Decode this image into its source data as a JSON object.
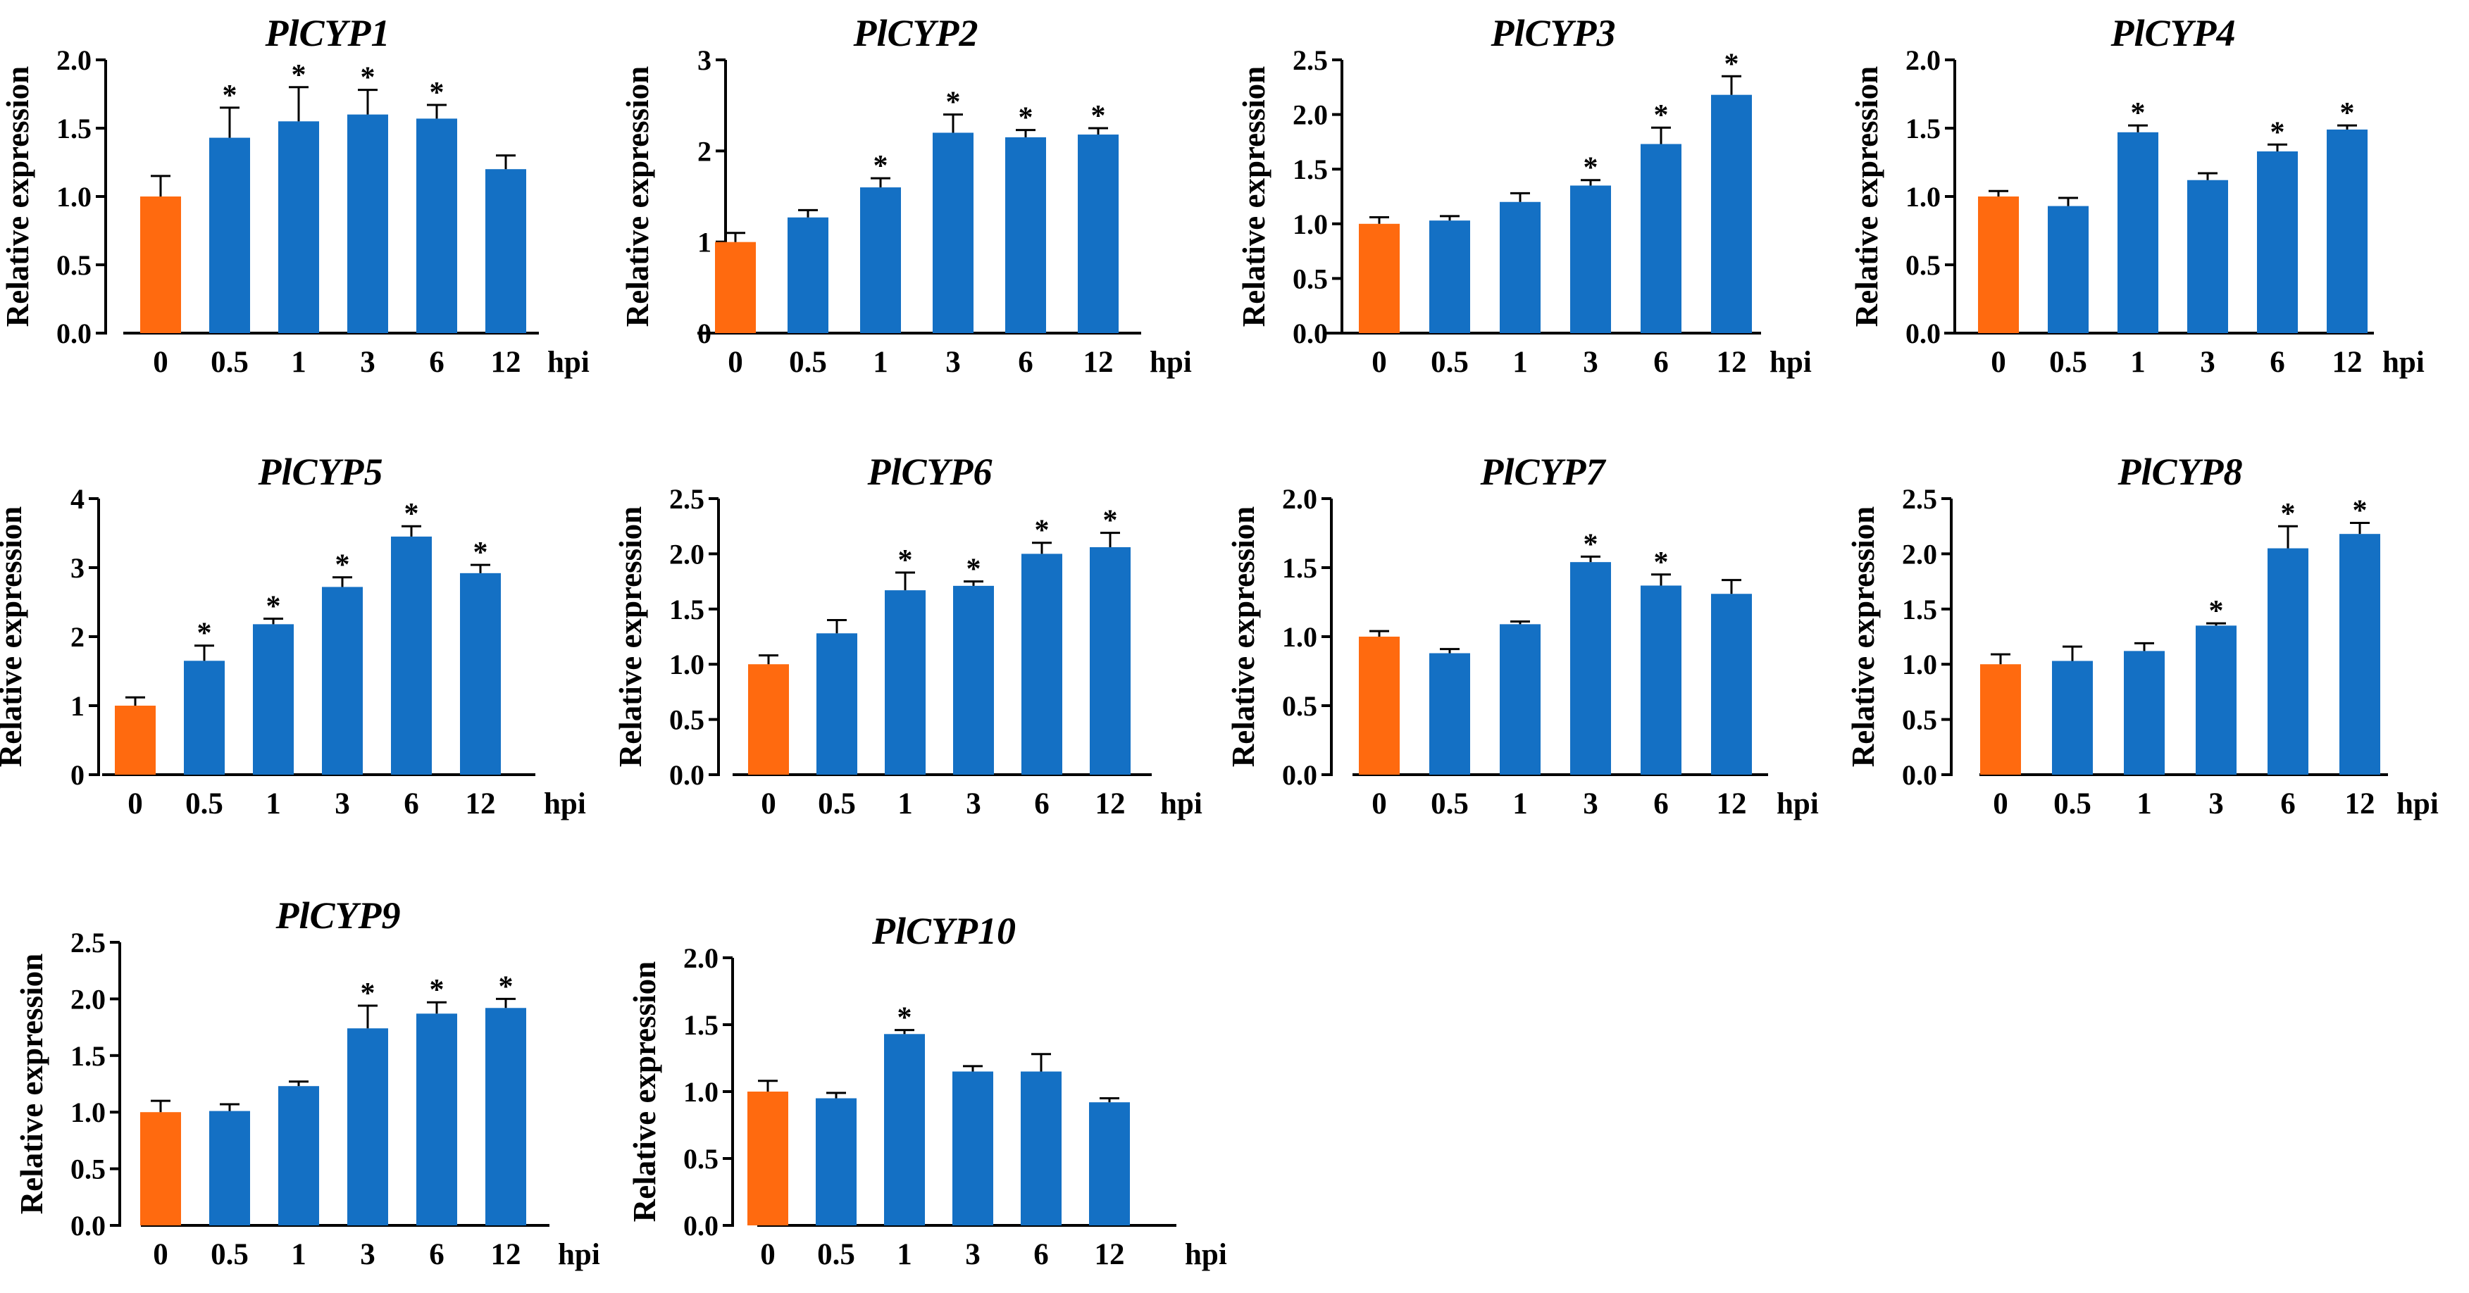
{
  "chart_data": [
    {
      "type": "bar",
      "title": "PlCYP1",
      "ylabel": "Relative expression",
      "xunit": "hpi",
      "categories": [
        "0",
        "0.5",
        "1",
        "3",
        "6",
        "12"
      ],
      "values": [
        1.0,
        1.43,
        1.55,
        1.6,
        1.57,
        1.2
      ],
      "errors": [
        0.15,
        0.22,
        0.25,
        0.18,
        0.1,
        0.1
      ],
      "significant": [
        false,
        true,
        true,
        true,
        true,
        false
      ],
      "ylim": [
        0,
        2.0
      ],
      "yticks": [
        "0.0",
        "0.5",
        "1.0",
        "1.5",
        "2.0"
      ]
    },
    {
      "type": "bar",
      "title": "PlCYP2",
      "ylabel": "Relative expression",
      "xunit": "hpi",
      "categories": [
        "0",
        "0.5",
        "1",
        "3",
        "6",
        "12"
      ],
      "values": [
        1.0,
        1.27,
        1.6,
        2.2,
        2.15,
        2.18
      ],
      "errors": [
        0.1,
        0.08,
        0.1,
        0.2,
        0.08,
        0.07
      ],
      "significant": [
        false,
        false,
        true,
        true,
        true,
        true
      ],
      "ylim": [
        0,
        3
      ],
      "yticks": [
        "0",
        "1",
        "2",
        "3"
      ]
    },
    {
      "type": "bar",
      "title": "PlCYP3",
      "ylabel": "Relative expression",
      "xunit": "hpi",
      "categories": [
        "0",
        "0.5",
        "1",
        "3",
        "6",
        "12"
      ],
      "values": [
        1.0,
        1.03,
        1.2,
        1.35,
        1.73,
        2.18
      ],
      "errors": [
        0.06,
        0.04,
        0.08,
        0.05,
        0.15,
        0.17
      ],
      "significant": [
        false,
        false,
        false,
        true,
        true,
        true
      ],
      "ylim": [
        0,
        2.5
      ],
      "yticks": [
        "0.0",
        "0.5",
        "1.0",
        "1.5",
        "2.0",
        "2.5"
      ]
    },
    {
      "type": "bar",
      "title": "PlCYP4",
      "ylabel": "Relative expression",
      "xunit": "hpi",
      "categories": [
        "0",
        "0.5",
        "1",
        "3",
        "6",
        "12"
      ],
      "values": [
        1.0,
        0.93,
        1.47,
        1.12,
        1.33,
        1.49
      ],
      "errors": [
        0.04,
        0.06,
        0.05,
        0.05,
        0.05,
        0.03
      ],
      "significant": [
        false,
        false,
        true,
        false,
        true,
        true
      ],
      "ylim": [
        0,
        2.0
      ],
      "yticks": [
        "0.0",
        "0.5",
        "1.0",
        "1.5",
        "2.0"
      ]
    },
    {
      "type": "bar",
      "title": "PlCYP5",
      "ylabel": "Relative expression",
      "xunit": "hpi",
      "categories": [
        "0",
        "0.5",
        "1",
        "3",
        "6",
        "12"
      ],
      "values": [
        1.0,
        1.65,
        2.18,
        2.72,
        3.45,
        2.92
      ],
      "errors": [
        0.12,
        0.22,
        0.08,
        0.14,
        0.15,
        0.12
      ],
      "significant": [
        false,
        true,
        true,
        true,
        true,
        true
      ],
      "ylim": [
        0,
        4
      ],
      "yticks": [
        "0",
        "1",
        "2",
        "3",
        "4"
      ]
    },
    {
      "type": "bar",
      "title": "PlCYP6",
      "ylabel": "Relative expression",
      "xunit": "hpi",
      "categories": [
        "0",
        "0.5",
        "1",
        "3",
        "6",
        "12"
      ],
      "values": [
        1.0,
        1.28,
        1.67,
        1.71,
        2.0,
        2.06
      ],
      "errors": [
        0.08,
        0.12,
        0.16,
        0.04,
        0.1,
        0.13
      ],
      "significant": [
        false,
        false,
        true,
        true,
        true,
        true
      ],
      "ylim": [
        0,
        2.5
      ],
      "yticks": [
        "0.0",
        "0.5",
        "1.0",
        "1.5",
        "2.0",
        "2.5"
      ]
    },
    {
      "type": "bar",
      "title": "PlCYP7",
      "ylabel": "Relative expression",
      "xunit": "hpi",
      "categories": [
        "0",
        "0.5",
        "1",
        "3",
        "6",
        "12"
      ],
      "values": [
        1.0,
        0.88,
        1.09,
        1.54,
        1.37,
        1.31
      ],
      "errors": [
        0.04,
        0.03,
        0.02,
        0.04,
        0.08,
        0.1
      ],
      "significant": [
        false,
        false,
        false,
        true,
        true,
        false
      ],
      "ylim": [
        0,
        2.0
      ],
      "yticks": [
        "0.0",
        "0.5",
        "1.0",
        "1.5",
        "2.0"
      ]
    },
    {
      "type": "bar",
      "title": "PlCYP8",
      "ylabel": "Relative expression",
      "xunit": "hpi",
      "categories": [
        "0",
        "0.5",
        "1",
        "3",
        "6",
        "12"
      ],
      "values": [
        1.0,
        1.03,
        1.12,
        1.35,
        2.05,
        2.18
      ],
      "errors": [
        0.09,
        0.13,
        0.07,
        0.02,
        0.2,
        0.1
      ],
      "significant": [
        false,
        false,
        false,
        true,
        true,
        true
      ],
      "ylim": [
        0,
        2.5
      ],
      "yticks": [
        "0.0",
        "0.5",
        "1.0",
        "1.5",
        "2.0",
        "2.5"
      ]
    },
    {
      "type": "bar",
      "title": "PlCYP9",
      "ylabel": "Relative expression",
      "xunit": "hpi",
      "categories": [
        "0",
        "0.5",
        "1",
        "3",
        "6",
        "12"
      ],
      "values": [
        1.0,
        1.01,
        1.23,
        1.74,
        1.87,
        1.92
      ],
      "errors": [
        0.1,
        0.06,
        0.04,
        0.2,
        0.1,
        0.08
      ],
      "significant": [
        false,
        false,
        false,
        true,
        true,
        true
      ],
      "ylim": [
        0,
        2.5
      ],
      "yticks": [
        "0.0",
        "0.5",
        "1.0",
        "1.5",
        "2.0",
        "2.5"
      ]
    },
    {
      "type": "bar",
      "title": "PlCYP10",
      "ylabel": "Relative expression",
      "xunit": "hpi",
      "categories": [
        "0",
        "0.5",
        "1",
        "3",
        "6",
        "12"
      ],
      "values": [
        1.0,
        0.95,
        1.43,
        1.15,
        1.15,
        0.92
      ],
      "errors": [
        0.08,
        0.04,
        0.03,
        0.04,
        0.13,
        0.03
      ],
      "significant": [
        false,
        false,
        true,
        false,
        false,
        false
      ],
      "ylim": [
        0,
        2.0
      ],
      "yticks": [
        "0.0",
        "0.5",
        "1.0",
        "1.5",
        "2.0"
      ]
    }
  ],
  "colors": {
    "control": "#ff6a0f",
    "treatment": "#1470c4",
    "axis": "#000000"
  },
  "significance_marker": "*"
}
